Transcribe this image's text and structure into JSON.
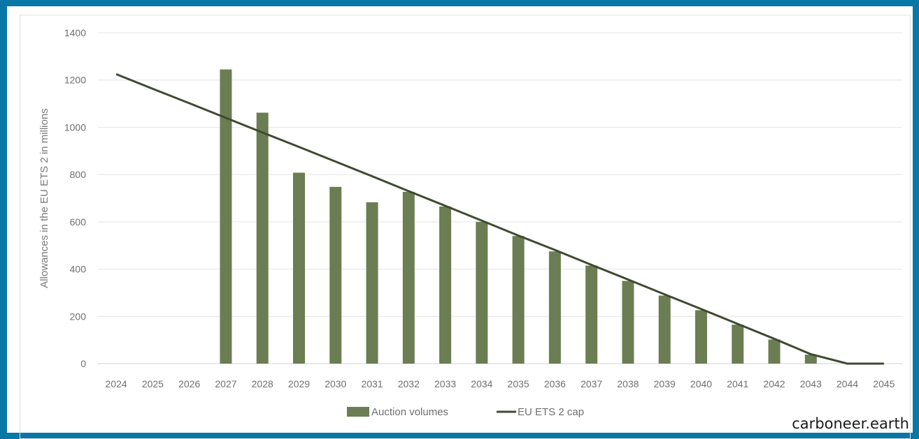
{
  "chart_data": {
    "type": "bar",
    "categories": [
      "2024",
      "2025",
      "2026",
      "2027",
      "2028",
      "2029",
      "2030",
      "2031",
      "2032",
      "2033",
      "2034",
      "2035",
      "2036",
      "2037",
      "2038",
      "2039",
      "2040",
      "2041",
      "2042",
      "2043",
      "2044",
      "2045"
    ],
    "ylabel": "Allowances in the EU ETS 2 in millions",
    "ylim": [
      0,
      1400
    ],
    "yticks": [
      0,
      200,
      400,
      600,
      800,
      1000,
      1200,
      1400
    ],
    "grid": true,
    "legend_position": "bottom",
    "series": [
      {
        "name": "Auction volumes",
        "type": "bar",
        "color": "#6b7d52",
        "values": [
          null,
          null,
          null,
          1245,
          1062,
          808,
          748,
          683,
          727,
          665,
          600,
          540,
          475,
          415,
          350,
          288,
          226,
          165,
          102,
          38,
          null,
          null
        ]
      },
      {
        "name": "EU ETS 2 cap",
        "type": "line",
        "color": "#3f4a32",
        "values": [
          1225,
          1163,
          1102,
          1040,
          978,
          917,
          855,
          793,
          730,
          668,
          605,
          542,
          481,
          418,
          356,
          293,
          231,
          168,
          105,
          40,
          0,
          0
        ]
      }
    ]
  },
  "watermark": "carboneer.earth"
}
